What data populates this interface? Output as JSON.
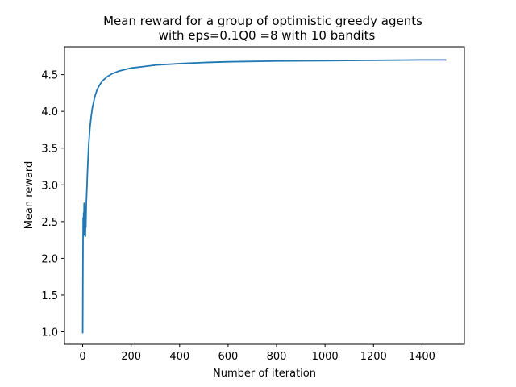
{
  "chart_data": {
    "type": "line",
    "title_line1": "Mean reward for a group of optimistic greedy agents",
    "title_line2": "with eps=0.1Q0 =8 with 10 bandits",
    "xlabel": "Number of iteration",
    "ylabel": "Mean reward",
    "xlim": [
      -75,
      1575
    ],
    "ylim": [
      0.83,
      4.88
    ],
    "xticks": [
      0,
      200,
      400,
      600,
      800,
      1000,
      1200,
      1400
    ],
    "xtick_labels": [
      "0",
      "200",
      "400",
      "600",
      "800",
      "1000",
      "1200",
      "1400"
    ],
    "yticks": [
      1.0,
      1.5,
      2.0,
      2.5,
      3.0,
      3.5,
      4.0,
      4.5
    ],
    "ytick_labels": [
      "1.0",
      "1.5",
      "2.0",
      "2.5",
      "3.0",
      "3.5",
      "4.0",
      "4.5"
    ],
    "grid": false,
    "series": [
      {
        "color": "#1f77b4",
        "x": [
          0,
          1,
          2,
          3,
          4,
          5,
          6,
          7,
          8,
          9,
          10,
          11,
          12,
          13,
          15,
          18,
          20,
          25,
          30,
          35,
          40,
          50,
          60,
          70,
          80,
          100,
          120,
          150,
          200,
          250,
          300,
          400,
          500,
          600,
          800,
          1000,
          1200,
          1400,
          1500
        ],
        "y": [
          0.98,
          1.9,
          2.55,
          2.3,
          2.62,
          2.38,
          2.75,
          2.35,
          2.7,
          2.32,
          2.6,
          2.3,
          2.5,
          2.42,
          2.75,
          3.0,
          3.2,
          3.55,
          3.78,
          3.93,
          4.05,
          4.2,
          4.3,
          4.36,
          4.41,
          4.47,
          4.51,
          4.55,
          4.59,
          4.61,
          4.63,
          4.65,
          4.665,
          4.675,
          4.685,
          4.69,
          4.695,
          4.7,
          4.7
        ]
      }
    ]
  }
}
